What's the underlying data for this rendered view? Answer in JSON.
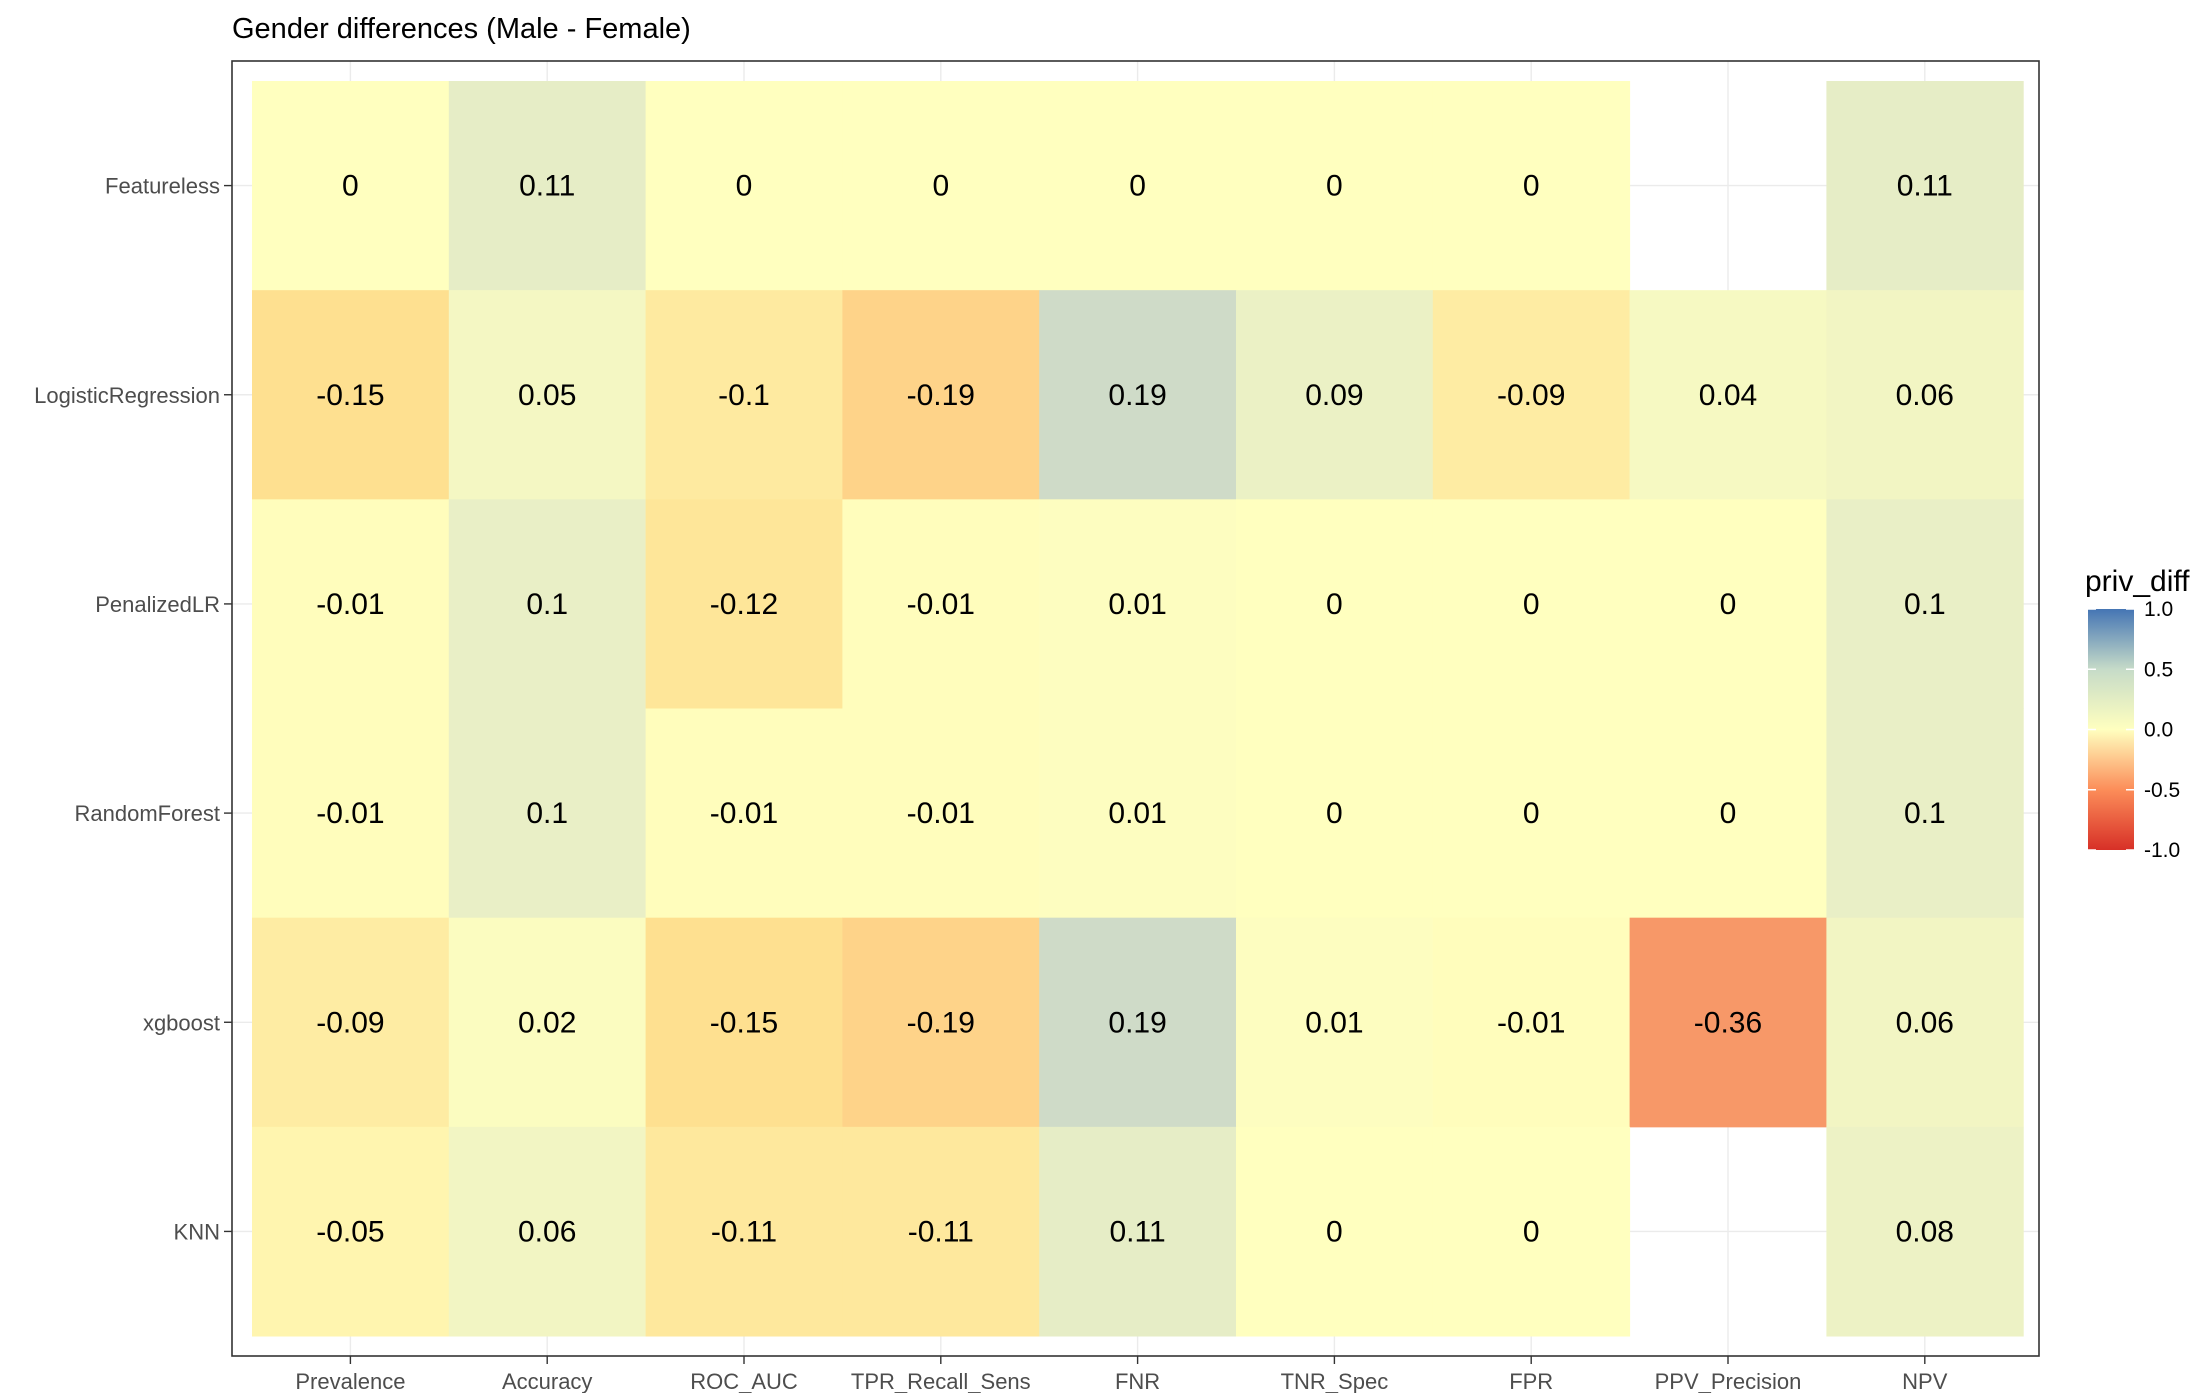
{
  "chart_data": {
    "type": "heatmap",
    "title": "Gender differences (Male - Female)",
    "xlabel": "",
    "ylabel": "",
    "x_categories": [
      "Prevalence",
      "Accuracy",
      "ROC_AUC",
      "TPR_Recall_Sens",
      "FNR",
      "TNR_Spec",
      "FPR",
      "PPV_Precision",
      "NPV"
    ],
    "y_categories": [
      "Featureless",
      "LogisticRegression",
      "PenalizedLR",
      "RandomForest",
      "xgboost",
      "KNN"
    ],
    "values": [
      [
        0,
        0.11,
        0,
        0,
        0,
        0,
        0,
        null,
        0.11
      ],
      [
        -0.15,
        0.05,
        -0.1,
        -0.19,
        0.19,
        0.09,
        -0.09,
        0.04,
        0.06
      ],
      [
        -0.01,
        0.1,
        -0.12,
        -0.01,
        0.01,
        0,
        0,
        0,
        0.1
      ],
      [
        -0.01,
        0.1,
        -0.01,
        -0.01,
        0.01,
        0,
        0,
        0,
        0.1
      ],
      [
        -0.09,
        0.02,
        -0.15,
        -0.19,
        0.19,
        0.01,
        -0.01,
        -0.36,
        0.06
      ],
      [
        -0.05,
        0.06,
        -0.11,
        -0.11,
        0.11,
        0,
        0,
        null,
        0.08
      ]
    ],
    "grid": true,
    "legend": {
      "title": "priv_diff",
      "position": "right",
      "range": [
        -1,
        1
      ],
      "ticks": [
        "1.0",
        "0.5",
        "0.0",
        "-0.5",
        "-1.0"
      ],
      "tick_values": [
        1,
        0.5,
        0,
        -0.5,
        -1
      ],
      "colors": {
        "low": "#d73027",
        "mid_low": "#fc8d59",
        "mid": "#ffffbf",
        "mid_high": "#91bfdb",
        "high": "#4575b4"
      }
    }
  }
}
